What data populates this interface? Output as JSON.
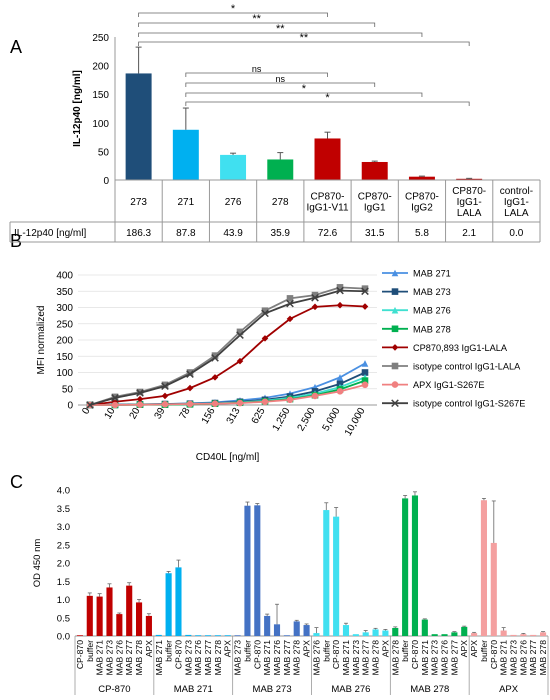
{
  "chart_data": [
    {
      "panel": "A",
      "type": "bar",
      "ylabel": "IL-12p40 [ng/ml]",
      "ylim": [
        0,
        250
      ],
      "yticks": [
        0,
        50,
        100,
        150,
        200,
        250
      ],
      "categories": [
        "273",
        "271",
        "276",
        "278",
        "CP870-IgG1-V11",
        "CP870-IgG1",
        "CP870-IgG2",
        "CP870-IgG1-LALA",
        "control-IgG1-LALA"
      ],
      "category_lines": [
        [
          "273"
        ],
        [
          "271"
        ],
        [
          "276"
        ],
        [
          "278"
        ],
        [
          "CP870-",
          "IgG1-V11"
        ],
        [
          "CP870-",
          "IgG1"
        ],
        [
          "CP870-",
          "IgG2"
        ],
        [
          "CP870-",
          "IgG1-",
          "LALA"
        ],
        [
          "control-",
          "IgG1-",
          "LALA"
        ]
      ],
      "values": [
        186.3,
        87.8,
        43.9,
        35.9,
        72.6,
        31.5,
        5.8,
        2.1,
        0.0
      ],
      "errors": [
        46,
        38,
        3,
        12,
        11,
        1.5,
        1,
        0.8,
        0
      ],
      "colors": [
        "#1f4e79",
        "#00b0f0",
        "#40e0f0",
        "#00b050",
        "#c00000",
        "#c00000",
        "#c00000",
        "#c00000",
        "#c00000"
      ],
      "table_row_label": "IL-12p40 [ng/ml]",
      "table_values": [
        "186.3",
        "87.8",
        "43.9",
        "35.9",
        "72.6",
        "31.5",
        "5.8",
        "2.1",
        "0.0"
      ],
      "significance": [
        {
          "from": 0,
          "to": 4,
          "label": "*"
        },
        {
          "from": 0,
          "to": 5,
          "label": "**"
        },
        {
          "from": 0,
          "to": 6,
          "label": "**"
        },
        {
          "from": 0,
          "to": 7,
          "label": "**"
        },
        {
          "from": 1,
          "to": 4,
          "label": "ns"
        },
        {
          "from": 1,
          "to": 5,
          "label": "ns"
        },
        {
          "from": 1,
          "to": 6,
          "label": "*"
        },
        {
          "from": 1,
          "to": 7,
          "label": "*"
        }
      ]
    },
    {
      "panel": "B",
      "type": "line",
      "ylabel": "MFI normalized",
      "xlabel": "CD40L [ng/ml]",
      "ylim": [
        0,
        400
      ],
      "yticks": [
        0,
        50,
        100,
        150,
        200,
        250,
        300,
        350,
        400
      ],
      "categories": [
        "0",
        "10",
        "20",
        "39",
        "78",
        "156",
        "313",
        "625",
        "1,250",
        "2,500",
        "5,000",
        "10,000"
      ],
      "series": [
        {
          "name": "MAB 271",
          "color": "#4a90e2",
          "marker": "triangle",
          "values": [
            0,
            1,
            2,
            3,
            5,
            8,
            14,
            22,
            35,
            55,
            85,
            128
          ]
        },
        {
          "name": "MAB 273",
          "color": "#1f4e79",
          "marker": "square",
          "values": [
            0,
            1,
            2,
            3,
            4,
            6,
            10,
            16,
            26,
            42,
            65,
            100
          ]
        },
        {
          "name": "MAB 276",
          "color": "#40e0d0",
          "marker": "triangle",
          "values": [
            0,
            0,
            1,
            2,
            3,
            5,
            8,
            13,
            22,
            35,
            55,
            85
          ]
        },
        {
          "name": "MAB 278",
          "color": "#00b050",
          "marker": "square",
          "values": [
            0,
            0,
            1,
            1,
            2,
            4,
            7,
            11,
            18,
            30,
            48,
            75
          ]
        },
        {
          "name": "CP870,893 IgG1-LALA",
          "color": "#a00000",
          "marker": "diamond",
          "values": [
            0,
            10,
            18,
            28,
            52,
            85,
            135,
            205,
            265,
            302,
            307,
            303
          ]
        },
        {
          "name": "isotype control IgG1-LALA",
          "color": "#7f7f7f",
          "marker": "square",
          "values": [
            0,
            25,
            40,
            62,
            100,
            152,
            225,
            290,
            328,
            338,
            362,
            358
          ]
        },
        {
          "name": "APX IgG1-S267E",
          "color": "#f08080",
          "marker": "circle",
          "values": [
            0,
            0,
            1,
            2,
            3,
            4,
            6,
            10,
            16,
            28,
            42,
            62
          ]
        },
        {
          "name": "isotype control IgG1-S267E",
          "color": "#404040",
          "marker": "x",
          "values": [
            0,
            22,
            37,
            58,
            95,
            145,
            215,
            282,
            312,
            330,
            352,
            350
          ]
        }
      ]
    },
    {
      "panel": "C",
      "type": "bar",
      "ylabel": "OD 450 nm",
      "ylim": [
        0,
        4.0
      ],
      "yticks": [
        "0.0",
        "0.5",
        "1.0",
        "1.5",
        "2.0",
        "2.5",
        "3.0",
        "3.5",
        "4.0"
      ],
      "groups": [
        {
          "name": "CP-870",
          "color": "#c00000",
          "categories": [
            "CP-870",
            "buffer",
            "MAB 271",
            "MAB 273",
            "MAB 276",
            "MAB 277",
            "MAB 278",
            "APX"
          ],
          "values": [
            0.02,
            1.1,
            1.08,
            1.33,
            0.6,
            1.38,
            0.92,
            0.55
          ],
          "errors": [
            0,
            0.08,
            0.08,
            0.1,
            0.03,
            0.08,
            0.08,
            0.06
          ]
        },
        {
          "name": "MAB 271",
          "color": "#00b0f0",
          "categories": [
            "MAB 271",
            "buffer",
            "CP-870",
            "MAB 273",
            "MAB 276",
            "MAB 277",
            "MAB 278",
            "APX"
          ],
          "values": [
            0.03,
            1.72,
            1.88,
            0.03,
            0.02,
            0.02,
            0.02,
            0.02
          ],
          "errors": [
            0,
            0.05,
            0.2,
            0,
            0,
            0,
            0,
            0
          ]
        },
        {
          "name": "MAB 273",
          "color": "#4472c4",
          "categories": [
            "MAB 273",
            "buffer",
            "CP-870",
            "MAB 271",
            "MAB 276",
            "MAB 277",
            "MAB 278",
            "APX"
          ],
          "values": [
            0.02,
            3.57,
            3.58,
            0.55,
            0.32,
            0.02,
            0.4,
            0.3
          ],
          "errors": [
            0,
            0.1,
            0.05,
            0.05,
            0.55,
            0,
            0.03,
            0.03
          ]
        },
        {
          "name": "MAB 276",
          "color": "#40e0f0",
          "categories": [
            "MAB 276",
            "buffer",
            "CP-870",
            "MAB 271",
            "MAB 273",
            "MAB 277",
            "MAB 278",
            "APX"
          ],
          "values": [
            0.08,
            3.45,
            3.27,
            0.3,
            0.05,
            0.1,
            0.18,
            0.15
          ],
          "errors": [
            0.15,
            0.2,
            0.25,
            0.05,
            0,
            0.05,
            0.03,
            0.03
          ]
        },
        {
          "name": "MAB 278",
          "color": "#00b050",
          "categories": [
            "MAB 278",
            "buffer",
            "CP-870",
            "MAB 271",
            "MAB 273",
            "MAB 276",
            "MAB 277",
            "APX"
          ],
          "values": [
            0.22,
            3.77,
            3.85,
            0.45,
            0.05,
            0.05,
            0.1,
            0.25
          ],
          "errors": [
            0.03,
            0.08,
            0.1,
            0.02,
            0,
            0,
            0.02,
            0.02
          ]
        },
        {
          "name": "APX",
          "color": "#f4a0a0",
          "categories": [
            "APX",
            "buffer",
            "CP-870",
            "MAB 271",
            "MAB 273",
            "MAB 276",
            "MAB 277",
            "MAB 278"
          ],
          "values": [
            0.08,
            3.72,
            2.55,
            0.15,
            0.03,
            0.05,
            0.03,
            0.1
          ],
          "errors": [
            0.02,
            0.05,
            1.15,
            0.08,
            0,
            0.02,
            0,
            0.02
          ]
        }
      ]
    }
  ],
  "panels": {
    "a": "A",
    "b": "B",
    "c": "C"
  }
}
